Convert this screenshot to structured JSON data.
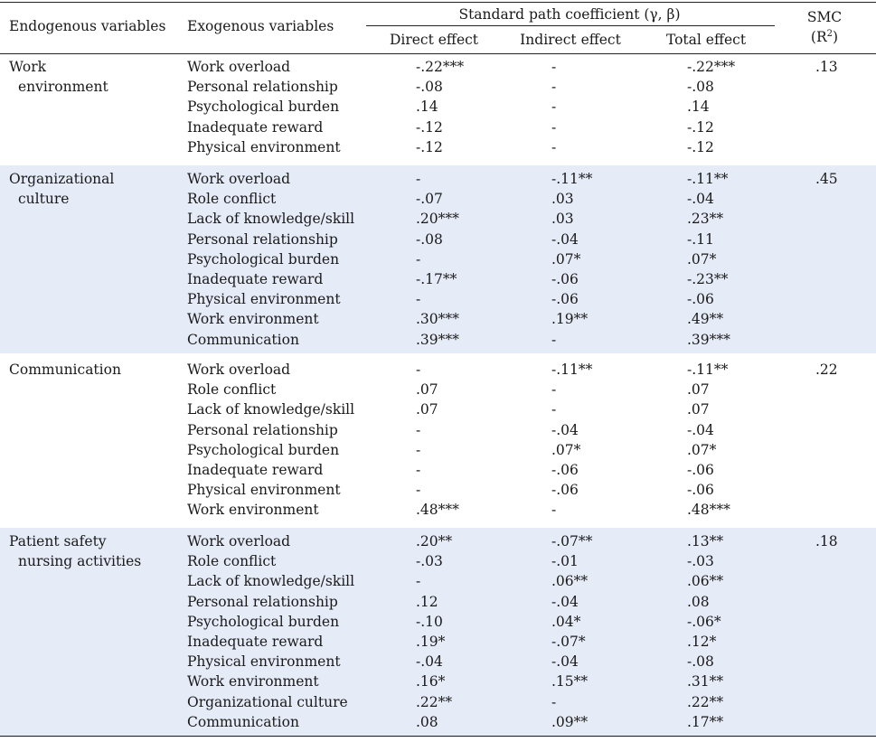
{
  "header": {
    "endogenous": "Endogenous variables",
    "exogenous": "Exogenous variables",
    "span_title": "Standard path coefficient (γ, β)",
    "direct": "Direct effect",
    "indirect": "Indirect effect",
    "total": "Total effect",
    "smc": "SMC",
    "smc_sub_open": "(R",
    "smc_sup": "2",
    "smc_sub_close": ")"
  },
  "groups": [
    {
      "endogenous": [
        "Work",
        "environment"
      ],
      "smc": ".13",
      "rows": [
        {
          "exo": "Work overload",
          "direct": "-.22***",
          "indirect": "-",
          "total": "-.22***"
        },
        {
          "exo": "Personal relationship",
          "direct": "-.08",
          "indirect": "-",
          "total": "-.08"
        },
        {
          "exo": "Psychological burden",
          "direct": ".14",
          "indirect": "-",
          "total": ".14"
        },
        {
          "exo": "Inadequate reward",
          "direct": "-.12",
          "indirect": "-",
          "total": "-.12"
        },
        {
          "exo": "Physical environment",
          "direct": "-.12",
          "indirect": "-",
          "total": "-.12"
        }
      ]
    },
    {
      "endogenous": [
        "Organizational",
        "culture"
      ],
      "smc": ".45",
      "rows": [
        {
          "exo": "Work overload",
          "direct": "-",
          "indirect": "-.11**",
          "total": "-.11**"
        },
        {
          "exo": "Role conflict",
          "direct": "-.07",
          "indirect": ".03",
          "total": "-.04"
        },
        {
          "exo": "Lack of knowledge/skill",
          "direct": ".20***",
          "indirect": ".03",
          "total": ".23**"
        },
        {
          "exo": "Personal relationship",
          "direct": "-.08",
          "indirect": "-.04",
          "total": "-.11"
        },
        {
          "exo": "Psychological burden",
          "direct": "-",
          "indirect": ".07*",
          "total": ".07*"
        },
        {
          "exo": "Inadequate reward",
          "direct": "-.17**",
          "indirect": "-.06",
          "total": "-.23**"
        },
        {
          "exo": "Physical environment",
          "direct": "-",
          "indirect": "-.06",
          "total": "-.06"
        },
        {
          "exo": "Work environment",
          "direct": ".30***",
          "indirect": ".19**",
          "total": ".49**"
        },
        {
          "exo": "Communication",
          "direct": ".39***",
          "indirect": "-",
          "total": ".39***"
        }
      ]
    },
    {
      "endogenous": [
        "Communication"
      ],
      "smc": ".22",
      "rows": [
        {
          "exo": "Work overload",
          "direct": "-",
          "indirect": "-.11**",
          "total": "-.11**"
        },
        {
          "exo": "Role conflict",
          "direct": ".07",
          "indirect": "-",
          "total": ".07"
        },
        {
          "exo": "Lack of knowledge/skill",
          "direct": ".07",
          "indirect": "-",
          "total": ".07"
        },
        {
          "exo": "Personal relationship",
          "direct": "-",
          "indirect": "-.04",
          "total": "-.04"
        },
        {
          "exo": "Psychological burden",
          "direct": "-",
          "indirect": ".07*",
          "total": ".07*"
        },
        {
          "exo": "Inadequate reward",
          "direct": "-",
          "indirect": "-.06",
          "total": "-.06"
        },
        {
          "exo": "Physical environment",
          "direct": "-",
          "indirect": "-.06",
          "total": "-.06"
        },
        {
          "exo": "Work environment",
          "direct": ".48***",
          "indirect": "-",
          "total": ".48***"
        }
      ]
    },
    {
      "endogenous": [
        "Patient safety",
        "nursing activities"
      ],
      "smc": ".18",
      "rows": [
        {
          "exo": "Work overload",
          "direct": ".20**",
          "indirect": "-.07**",
          "total": ".13**"
        },
        {
          "exo": "Role conflict",
          "direct": "-.03",
          "indirect": "-.01",
          "total": "-.03"
        },
        {
          "exo": "Lack of knowledge/skill",
          "direct": "-",
          "indirect": ".06**",
          "total": ".06**"
        },
        {
          "exo": "Personal relationship",
          "direct": ".12",
          "indirect": "-.04",
          "total": ".08"
        },
        {
          "exo": "Psychological burden",
          "direct": "-.10",
          "indirect": ".04*",
          "total": "-.06*"
        },
        {
          "exo": "Inadequate reward",
          "direct": ".19*",
          "indirect": "-.07*",
          "total": ".12*"
        },
        {
          "exo": "Physical environment",
          "direct": "-.04",
          "indirect": "-.04",
          "total": "-.08"
        },
        {
          "exo": "Work environment",
          "direct": ".16*",
          "indirect": ".15**",
          "total": ".31**"
        },
        {
          "exo": "Organizational culture",
          "direct": ".22**",
          "indirect": "-",
          "total": ".22**"
        },
        {
          "exo": "Communication",
          "direct": ".08",
          "indirect": ".09**",
          "total": ".17**"
        }
      ]
    }
  ]
}
